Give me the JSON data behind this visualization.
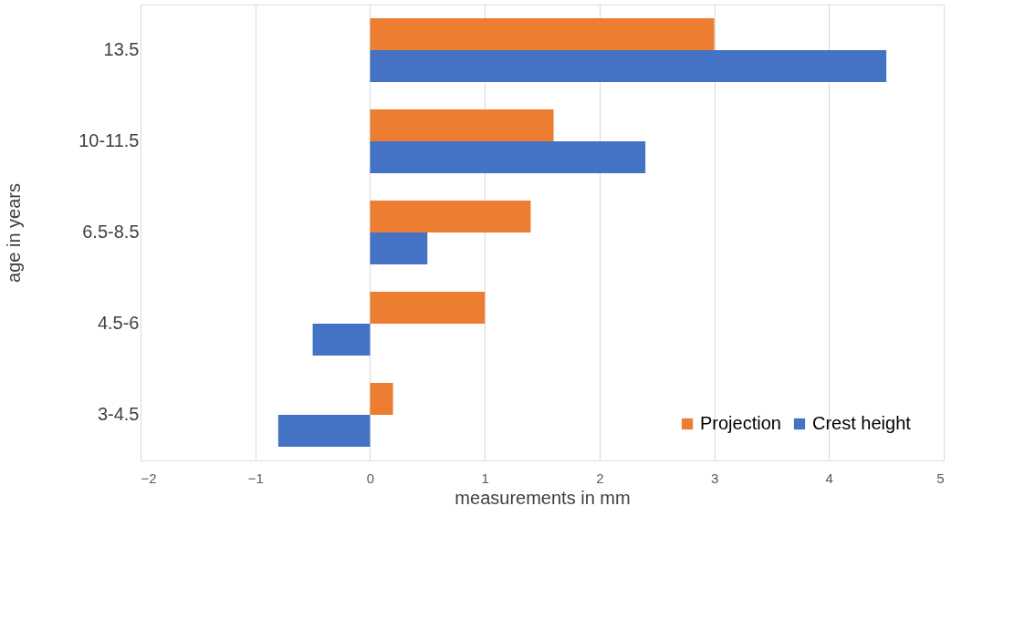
{
  "chart_data": {
    "type": "bar",
    "orientation": "horizontal",
    "xlabel": "measurements in mm",
    "ylabel": "age in years",
    "categories": [
      "13.5",
      "10-11.5",
      "6.5-8.5",
      "4.5-6",
      "3-4.5"
    ],
    "series": [
      {
        "name": "Projection",
        "color": "#ed7d31",
        "values": [
          3.0,
          1.6,
          1.4,
          1.0,
          0.2
        ]
      },
      {
        "name": "Crest  height",
        "color": "#4472c4",
        "values": [
          4.5,
          2.4,
          0.5,
          -0.5,
          -0.8
        ]
      }
    ],
    "xlim": [
      -2,
      5
    ],
    "xticks": [
      -2,
      -1,
      0,
      1,
      2,
      3,
      4,
      5
    ],
    "grid": "x",
    "legend": "bottom right"
  }
}
